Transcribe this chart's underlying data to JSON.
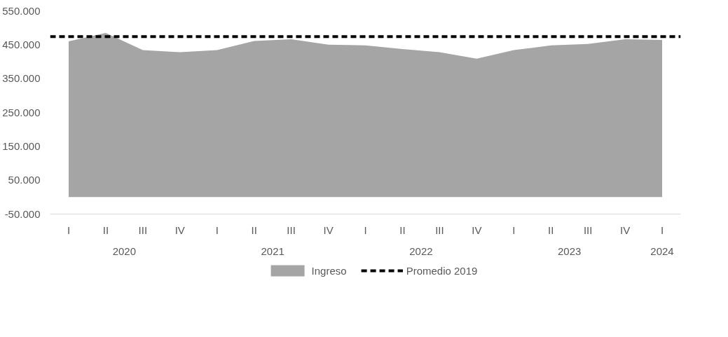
{
  "chart_data": {
    "type": "area",
    "categories": [
      "I",
      "II",
      "III",
      "IV",
      "I",
      "II",
      "III",
      "IV",
      "I",
      "II",
      "III",
      "IV",
      "I",
      "II",
      "III",
      "IV",
      "I"
    ],
    "series": [
      {
        "name": "Ingreso",
        "color": "#a5a5a5",
        "values": [
          460000,
          485000,
          434000,
          428000,
          434000,
          461000,
          466000,
          450000,
          448000,
          437000,
          428000,
          409000,
          434000,
          448000,
          452000,
          466000,
          464000
        ]
      }
    ],
    "ref_lines": [
      {
        "axis": "y",
        "value": 474000,
        "label": "Promedio 2019",
        "color": "#000000",
        "line_style": "dashed"
      }
    ],
    "annotations": [
      "2020",
      "2021",
      "2022",
      "2023",
      "2024"
    ],
    "ylim": [
      -50000,
      550000
    ],
    "yticks": [
      {
        "value": -50000,
        "label": "-50.000"
      },
      {
        "value": 50000,
        "label": "50.000"
      },
      {
        "value": 150000,
        "label": "150.000"
      },
      {
        "value": 250000,
        "label": "250.000"
      },
      {
        "value": 350000,
        "label": "350.000"
      },
      {
        "value": 450000,
        "label": "450.000"
      },
      {
        "value": 550000,
        "label": "550.000"
      }
    ],
    "grid": false,
    "legend": "bottom"
  }
}
